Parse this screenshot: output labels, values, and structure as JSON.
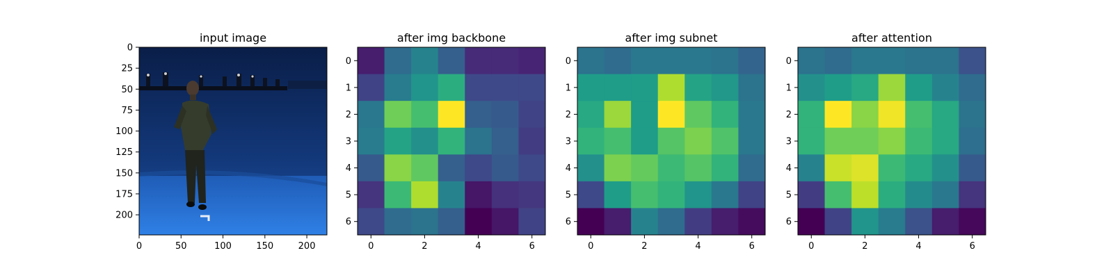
{
  "chart_data": [
    {
      "type": "image",
      "title": "input image",
      "xticks": [
        0,
        50,
        100,
        150,
        200
      ],
      "yticks": [
        0,
        25,
        50,
        75,
        100,
        125,
        150,
        175,
        200
      ],
      "xlim": [
        0,
        224
      ],
      "ylim": [
        224,
        0
      ],
      "description_colors": {
        "backdrop": "#0f2a5e",
        "floor": "#2a73d6",
        "figure": "#2d3426"
      }
    },
    {
      "type": "heatmap",
      "title": "after img backbone",
      "colormap": "viridis",
      "xticks": [
        0,
        2,
        4,
        6
      ],
      "yticks": [
        0,
        1,
        2,
        3,
        4,
        5,
        6
      ],
      "values": [
        [
          0.08,
          0.35,
          0.45,
          0.3,
          0.12,
          0.12,
          0.1
        ],
        [
          0.2,
          0.42,
          0.52,
          0.62,
          0.22,
          0.22,
          0.22
        ],
        [
          0.4,
          0.78,
          0.7,
          1.0,
          0.3,
          0.28,
          0.2
        ],
        [
          0.42,
          0.58,
          0.5,
          0.65,
          0.38,
          0.3,
          0.18
        ],
        [
          0.28,
          0.82,
          0.75,
          0.3,
          0.22,
          0.28,
          0.22
        ],
        [
          0.15,
          0.68,
          0.88,
          0.45,
          0.06,
          0.14,
          0.16
        ],
        [
          0.22,
          0.35,
          0.38,
          0.3,
          0.0,
          0.06,
          0.2
        ]
      ]
    },
    {
      "type": "heatmap",
      "title": "after img subnet",
      "colormap": "viridis",
      "xticks": [
        0,
        2,
        4,
        6
      ],
      "yticks": [
        0,
        1,
        2,
        3,
        4,
        5,
        6
      ],
      "values": [
        [
          0.38,
          0.35,
          0.4,
          0.4,
          0.4,
          0.38,
          0.32
        ],
        [
          0.55,
          0.55,
          0.55,
          0.88,
          0.58,
          0.53,
          0.38
        ],
        [
          0.6,
          0.85,
          0.55,
          1.0,
          0.75,
          0.65,
          0.4
        ],
        [
          0.65,
          0.7,
          0.55,
          0.73,
          0.8,
          0.72,
          0.4
        ],
        [
          0.5,
          0.8,
          0.76,
          0.68,
          0.73,
          0.65,
          0.35
        ],
        [
          0.22,
          0.55,
          0.7,
          0.65,
          0.52,
          0.4,
          0.2
        ],
        [
          0.0,
          0.08,
          0.45,
          0.35,
          0.18,
          0.08,
          0.03
        ]
      ]
    },
    {
      "type": "heatmap",
      "title": "after attention",
      "colormap": "viridis",
      "xticks": [
        0,
        2,
        4,
        6
      ],
      "yticks": [
        0,
        1,
        2,
        3,
        4,
        5,
        6
      ],
      "values": [
        [
          0.38,
          0.35,
          0.4,
          0.4,
          0.38,
          0.38,
          0.25
        ],
        [
          0.5,
          0.55,
          0.6,
          0.85,
          0.55,
          0.45,
          0.35
        ],
        [
          0.65,
          1.0,
          0.82,
          0.98,
          0.7,
          0.6,
          0.38
        ],
        [
          0.65,
          0.78,
          0.78,
          0.82,
          0.68,
          0.6,
          0.36
        ],
        [
          0.45,
          0.92,
          0.95,
          0.68,
          0.6,
          0.5,
          0.28
        ],
        [
          0.18,
          0.7,
          0.9,
          0.62,
          0.48,
          0.4,
          0.15
        ],
        [
          0.0,
          0.2,
          0.52,
          0.42,
          0.25,
          0.08,
          0.02
        ]
      ]
    }
  ]
}
